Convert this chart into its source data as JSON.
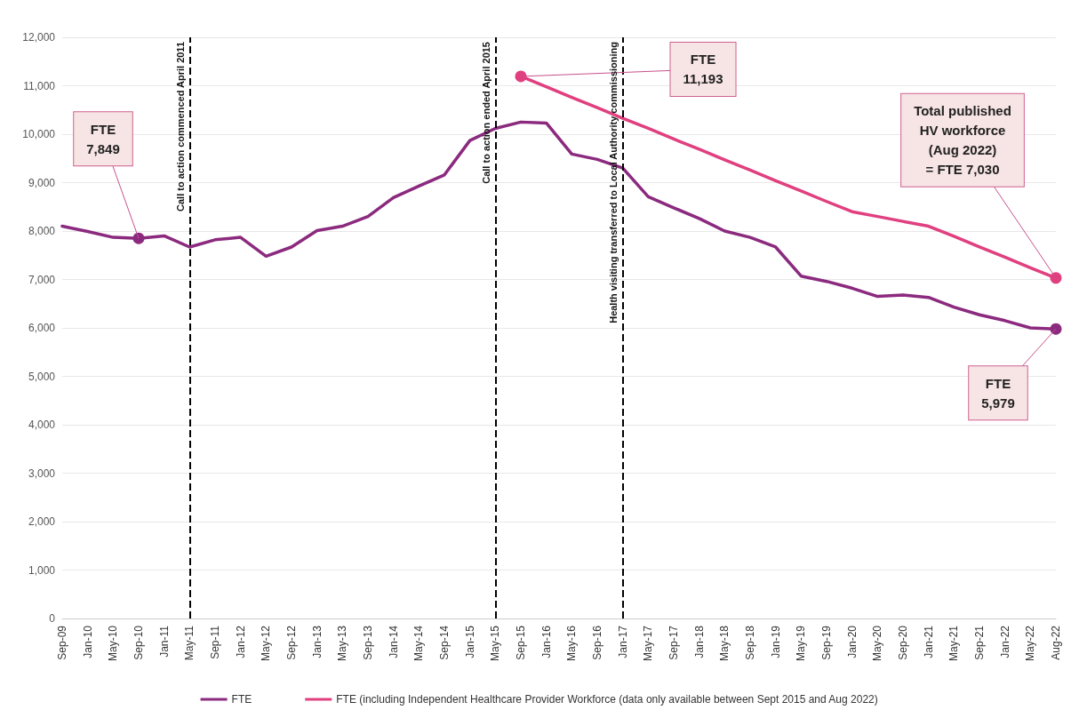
{
  "chart_data": {
    "type": "line",
    "categories": [
      "Sep-09",
      "Jan-10",
      "May-10",
      "Sep-10",
      "Jan-11",
      "May-11",
      "Sep-11",
      "Jan-12",
      "May-12",
      "Sep-12",
      "Jan-13",
      "May-13",
      "Sep-13",
      "Jan-14",
      "May-14",
      "Sep-14",
      "Jan-15",
      "May-15",
      "Sep-15",
      "Jan-16",
      "May-16",
      "Sep-16",
      "Jan-17",
      "May-17",
      "Sep-17",
      "Jan-18",
      "May-18",
      "Sep-18",
      "Jan-19",
      "May-19",
      "Sep-19",
      "Jan-20",
      "May-20",
      "Sep-20",
      "Jan-21",
      "May-21",
      "Sep-21",
      "Jan-22",
      "May-22",
      "Aug-22"
    ],
    "series": [
      {
        "name": "FTE",
        "color": "#8b2a7e",
        "values": [
          8100,
          7990,
          7870,
          7849,
          7900,
          7670,
          7820,
          7870,
          7480,
          7670,
          8010,
          8100,
          8300,
          8690,
          8930,
          9160,
          9870,
          10120,
          10250,
          10230,
          9590,
          9480,
          9300,
          8710,
          8480,
          8260,
          8000,
          7870,
          7670,
          7070,
          6960,
          6820,
          6650,
          6680,
          6630,
          6430,
          6270,
          6150,
          6000,
          5979
        ]
      },
      {
        "name": "FTE (including Independent Healthcare Provider Workforce (data only available between Sept 2015 and Aug 2022)",
        "color": "#e0407f",
        "values": [
          null,
          null,
          null,
          null,
          null,
          null,
          null,
          null,
          null,
          null,
          null,
          null,
          null,
          null,
          null,
          null,
          null,
          null,
          11193,
          10980,
          10760,
          10550,
          10330,
          10120,
          9900,
          9690,
          9470,
          9260,
          9040,
          8830,
          8610,
          8400,
          8300,
          8200,
          8100,
          7890,
          7670,
          7460,
          7240,
          7030
        ]
      }
    ],
    "ylim": [
      0,
      12000
    ],
    "yticks": [
      0,
      {
        "value": 1000,
        "label": "1,000"
      },
      {
        "value": 2000,
        "label": "2,000"
      },
      {
        "value": 3000,
        "label": "3,000"
      },
      {
        "value": 4000,
        "label": "4,000"
      },
      {
        "value": 5000,
        "label": "5,000"
      },
      {
        "value": 6000,
        "label": "6,000"
      },
      {
        "value": 7000,
        "label": "7,000"
      },
      {
        "value": 8000,
        "label": "8,000"
      },
      {
        "value": 9000,
        "label": "9,000"
      },
      {
        "value": 10000,
        "label": "10,000"
      },
      {
        "value": 11000,
        "label": "11,000"
      },
      {
        "value": 12000,
        "label": "12,000"
      }
    ],
    "grid": "y",
    "legend": "bottom",
    "marker": "none",
    "line_style": "solid",
    "ref_lines": [
      {
        "axis": "x",
        "value": "May-11",
        "label": "Call to action commenced April 2011",
        "color": "#000000",
        "line_style": "dashed"
      },
      {
        "axis": "x",
        "value": "May-15",
        "label": "Call to action ended April 2015",
        "color": "#000000",
        "line_style": "dashed"
      },
      {
        "axis": "x",
        "value": "Jan-17",
        "label": "Health visiting transferred to Local Authority commissioning",
        "color": "#000000",
        "line_style": "dashed"
      }
    ],
    "annotations": [
      {
        "text": "FTE\n7,849",
        "x": "Sep-10",
        "y": 7849
      },
      {
        "text": "FTE\n11,193",
        "x": "Sep-15",
        "y": 11193
      },
      {
        "text": "Total published\nHV workforce\n(Aug 2022)\n= FTE 7,030",
        "x": "Aug-22",
        "y": 7030
      },
      {
        "text": "FTE\n5,979",
        "x": "Aug-22",
        "y": 5979
      }
    ]
  }
}
